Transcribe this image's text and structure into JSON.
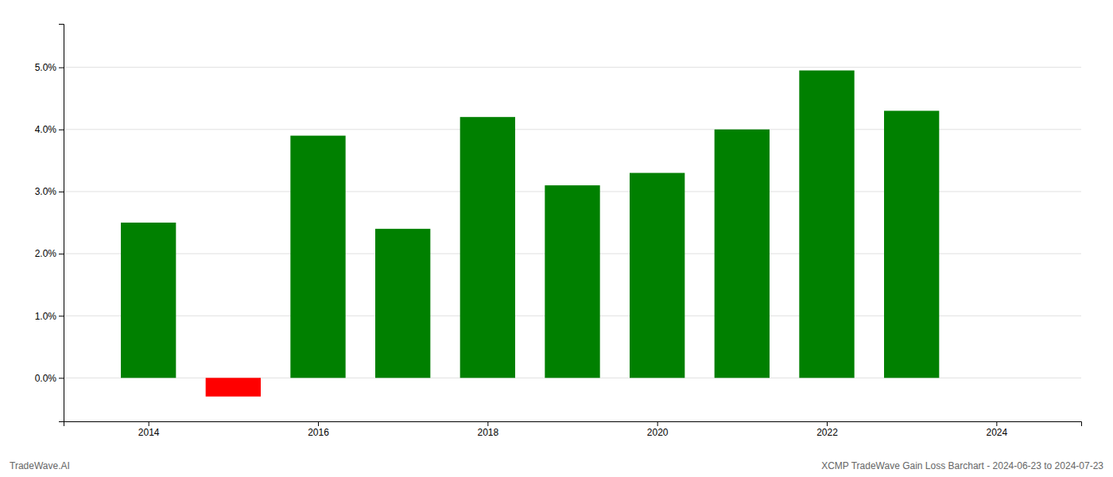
{
  "chart_data": {
    "type": "bar",
    "x": [
      2014,
      2015,
      2016,
      2017,
      2018,
      2019,
      2020,
      2021,
      2022,
      2023
    ],
    "values": [
      0.025,
      -0.003,
      0.039,
      0.024,
      0.042,
      0.031,
      0.033,
      0.04,
      0.0495,
      0.043
    ],
    "colors": [
      "#008000",
      "#ff0000",
      "#008000",
      "#008000",
      "#008000",
      "#008000",
      "#008000",
      "#008000",
      "#008000",
      "#008000"
    ],
    "xlim": [
      2013.0,
      2025.0
    ],
    "xticks": [
      2014,
      2016,
      2018,
      2020,
      2022,
      2024
    ],
    "ylim": [
      -0.007,
      0.057
    ],
    "yticks": [
      {
        "value": 0.0,
        "label": "0.0%"
      },
      {
        "value": 0.01,
        "label": "1.0%"
      },
      {
        "value": 0.02,
        "label": "2.0%"
      },
      {
        "value": 0.03,
        "label": "3.0%"
      },
      {
        "value": 0.04,
        "label": "4.0%"
      },
      {
        "value": 0.05,
        "label": "5.0%"
      }
    ],
    "grid": "y",
    "annotations": [
      "TradeWave.AI",
      "XCMP TradeWave Gain Loss Barchart - 2024-06-23 to 2024-07-23"
    ]
  }
}
